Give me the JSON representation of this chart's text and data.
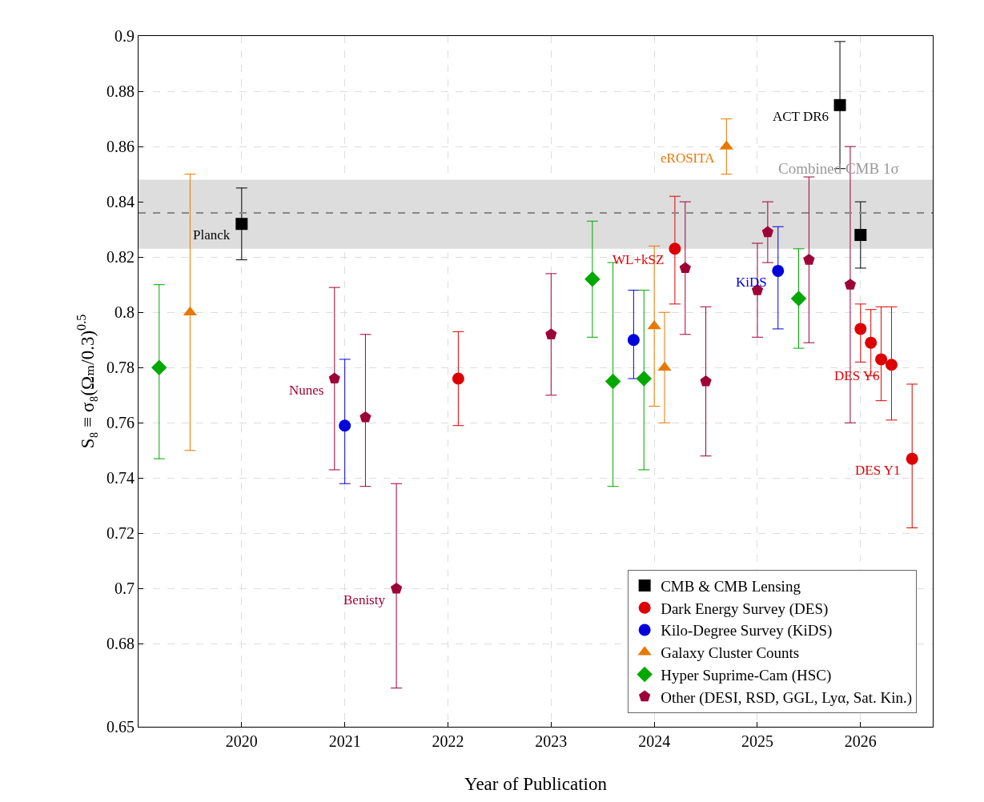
{
  "chart_data": {
    "type": "scatter",
    "xlabel": "Year of Publication",
    "ylabel": "S₈ ≡ σ₈(Ωₘ/0.3)$^{0.5}$",
    "xlim": [
      2019,
      2026.7
    ],
    "xticks": [
      2020,
      2021,
      2022,
      2023,
      2024,
      2025,
      2026
    ],
    "ylim": [
      0.65,
      0.9
    ],
    "yticks": [
      0.65,
      0.68,
      0.7,
      0.72,
      0.74,
      0.76,
      0.78,
      0.8,
      0.82,
      0.84,
      0.86,
      0.88,
      0.9
    ],
    "grid": true,
    "legend": "bottom right",
    "series": [
      {
        "name": "CMB & CMB Lensing",
        "color": "#000000",
        "marker": "square",
        "x": [
          2020,
          2025.8,
          2026
        ],
        "values": [
          0.832,
          0.875,
          0.828
        ],
        "errors": [
          [
            0.819,
            0.845
          ],
          [
            0.852,
            0.898
          ],
          [
            0.816,
            0.84
          ]
        ]
      },
      {
        "name": "Dark Energy Survey (DES)",
        "color": "#dd0000",
        "marker": "circle",
        "x": [
          2022.1,
          2024.2,
          2026,
          2026.1,
          2026.2,
          2026.3,
          2026.5
        ],
        "values": [
          0.776,
          0.823,
          0.794,
          0.789,
          0.783,
          0.781,
          0.747
        ],
        "errors": [
          [
            0.759,
            0.793
          ],
          [
            0.803,
            0.842
          ],
          [
            0.782,
            0.803
          ],
          [
            0.777,
            0.801
          ],
          [
            0.768,
            0.802
          ],
          [
            0.761,
            0.802
          ],
          [
            0.722,
            0.774
          ]
        ]
      },
      {
        "name": "Kilo-Degree Survey (KiDS)",
        "color": "#0000dd",
        "marker": "circle",
        "x": [
          2021,
          2023.8,
          2025.2
        ],
        "values": [
          0.759,
          0.79,
          0.815
        ],
        "errors": [
          [
            0.738,
            0.783
          ],
          [
            0.776,
            0.808
          ],
          [
            0.794,
            0.831
          ]
        ]
      },
      {
        "name": "Galaxy Cluster Counts",
        "color": "#e87800",
        "marker": "triangle",
        "x": [
          2019.5,
          2024,
          2024.1,
          2024.7
        ],
        "values": [
          0.8,
          0.795,
          0.78,
          0.86
        ],
        "errors": [
          [
            0.75,
            0.85
          ],
          [
            0.766,
            0.824
          ],
          [
            0.76,
            0.8
          ],
          [
            0.85,
            0.87
          ]
        ]
      },
      {
        "name": "Hyper Suprime-Cam (HSC)",
        "color": "#00a800",
        "marker": "diamond",
        "x": [
          2019.2,
          2023.4,
          2023.6,
          2023.9,
          2025.4
        ],
        "values": [
          0.78,
          0.812,
          0.775,
          0.776,
          0.805
        ],
        "errors": [
          [
            0.747,
            0.81
          ],
          [
            0.791,
            0.833
          ],
          [
            0.737,
            0.818
          ],
          [
            0.743,
            0.808
          ],
          [
            0.787,
            0.823
          ]
        ]
      },
      {
        "name": "Other (DESI, RSD, GGL, Lyα, Sat. Kin.)",
        "color": "#9e0038",
        "x": [
          2020.9,
          2021.2,
          2021.5,
          2023,
          2024.3,
          2024.5,
          2025,
          2025.1,
          2025.5,
          2025.9
        ],
        "values": [
          0.776,
          0.762,
          0.7,
          0.792,
          0.816,
          0.775,
          0.808,
          0.829,
          0.819,
          0.81
        ],
        "errors": [
          [
            0.743,
            0.809
          ],
          [
            0.737,
            0.792
          ],
          [
            0.664,
            0.738
          ],
          [
            0.77,
            0.814
          ],
          [
            0.792,
            0.84
          ],
          [
            0.748,
            0.802
          ],
          [
            0.791,
            0.825
          ],
          [
            0.818,
            0.84
          ],
          [
            0.789,
            0.849
          ],
          [
            0.76,
            0.86
          ]
        ]
      }
    ],
    "bands": [
      {
        "axis": "y",
        "from": 0.823,
        "to": 0.848,
        "label": "Combined CMB 1σ",
        "color": "#dddddd"
      }
    ],
    "ref_lines": [
      {
        "axis": "y",
        "value": 0.836,
        "color": "#888888",
        "line_style": "dashed"
      }
    ],
    "annotations": [
      {
        "text": "Planck",
        "x": 2020,
        "y": 0.832
      },
      {
        "text": "ACT DR6",
        "x": 2025.8,
        "y": 0.875
      },
      {
        "text": "eROSITA",
        "x": 2024.7,
        "y": 0.86
      },
      {
        "text": "WL+kSZ",
        "x": 2024.2,
        "y": 0.823
      },
      {
        "text": "KiDS",
        "x": 2025.2,
        "y": 0.815
      },
      {
        "text": "Nunes",
        "x": 2020.9,
        "y": 0.776
      },
      {
        "text": "Benisty",
        "x": 2021.5,
        "y": 0.7
      },
      {
        "text": "DES Y6",
        "x": 2026.3,
        "y": 0.781
      },
      {
        "text": "DES Y1",
        "x": 2026.5,
        "y": 0.747
      }
    ]
  }
}
